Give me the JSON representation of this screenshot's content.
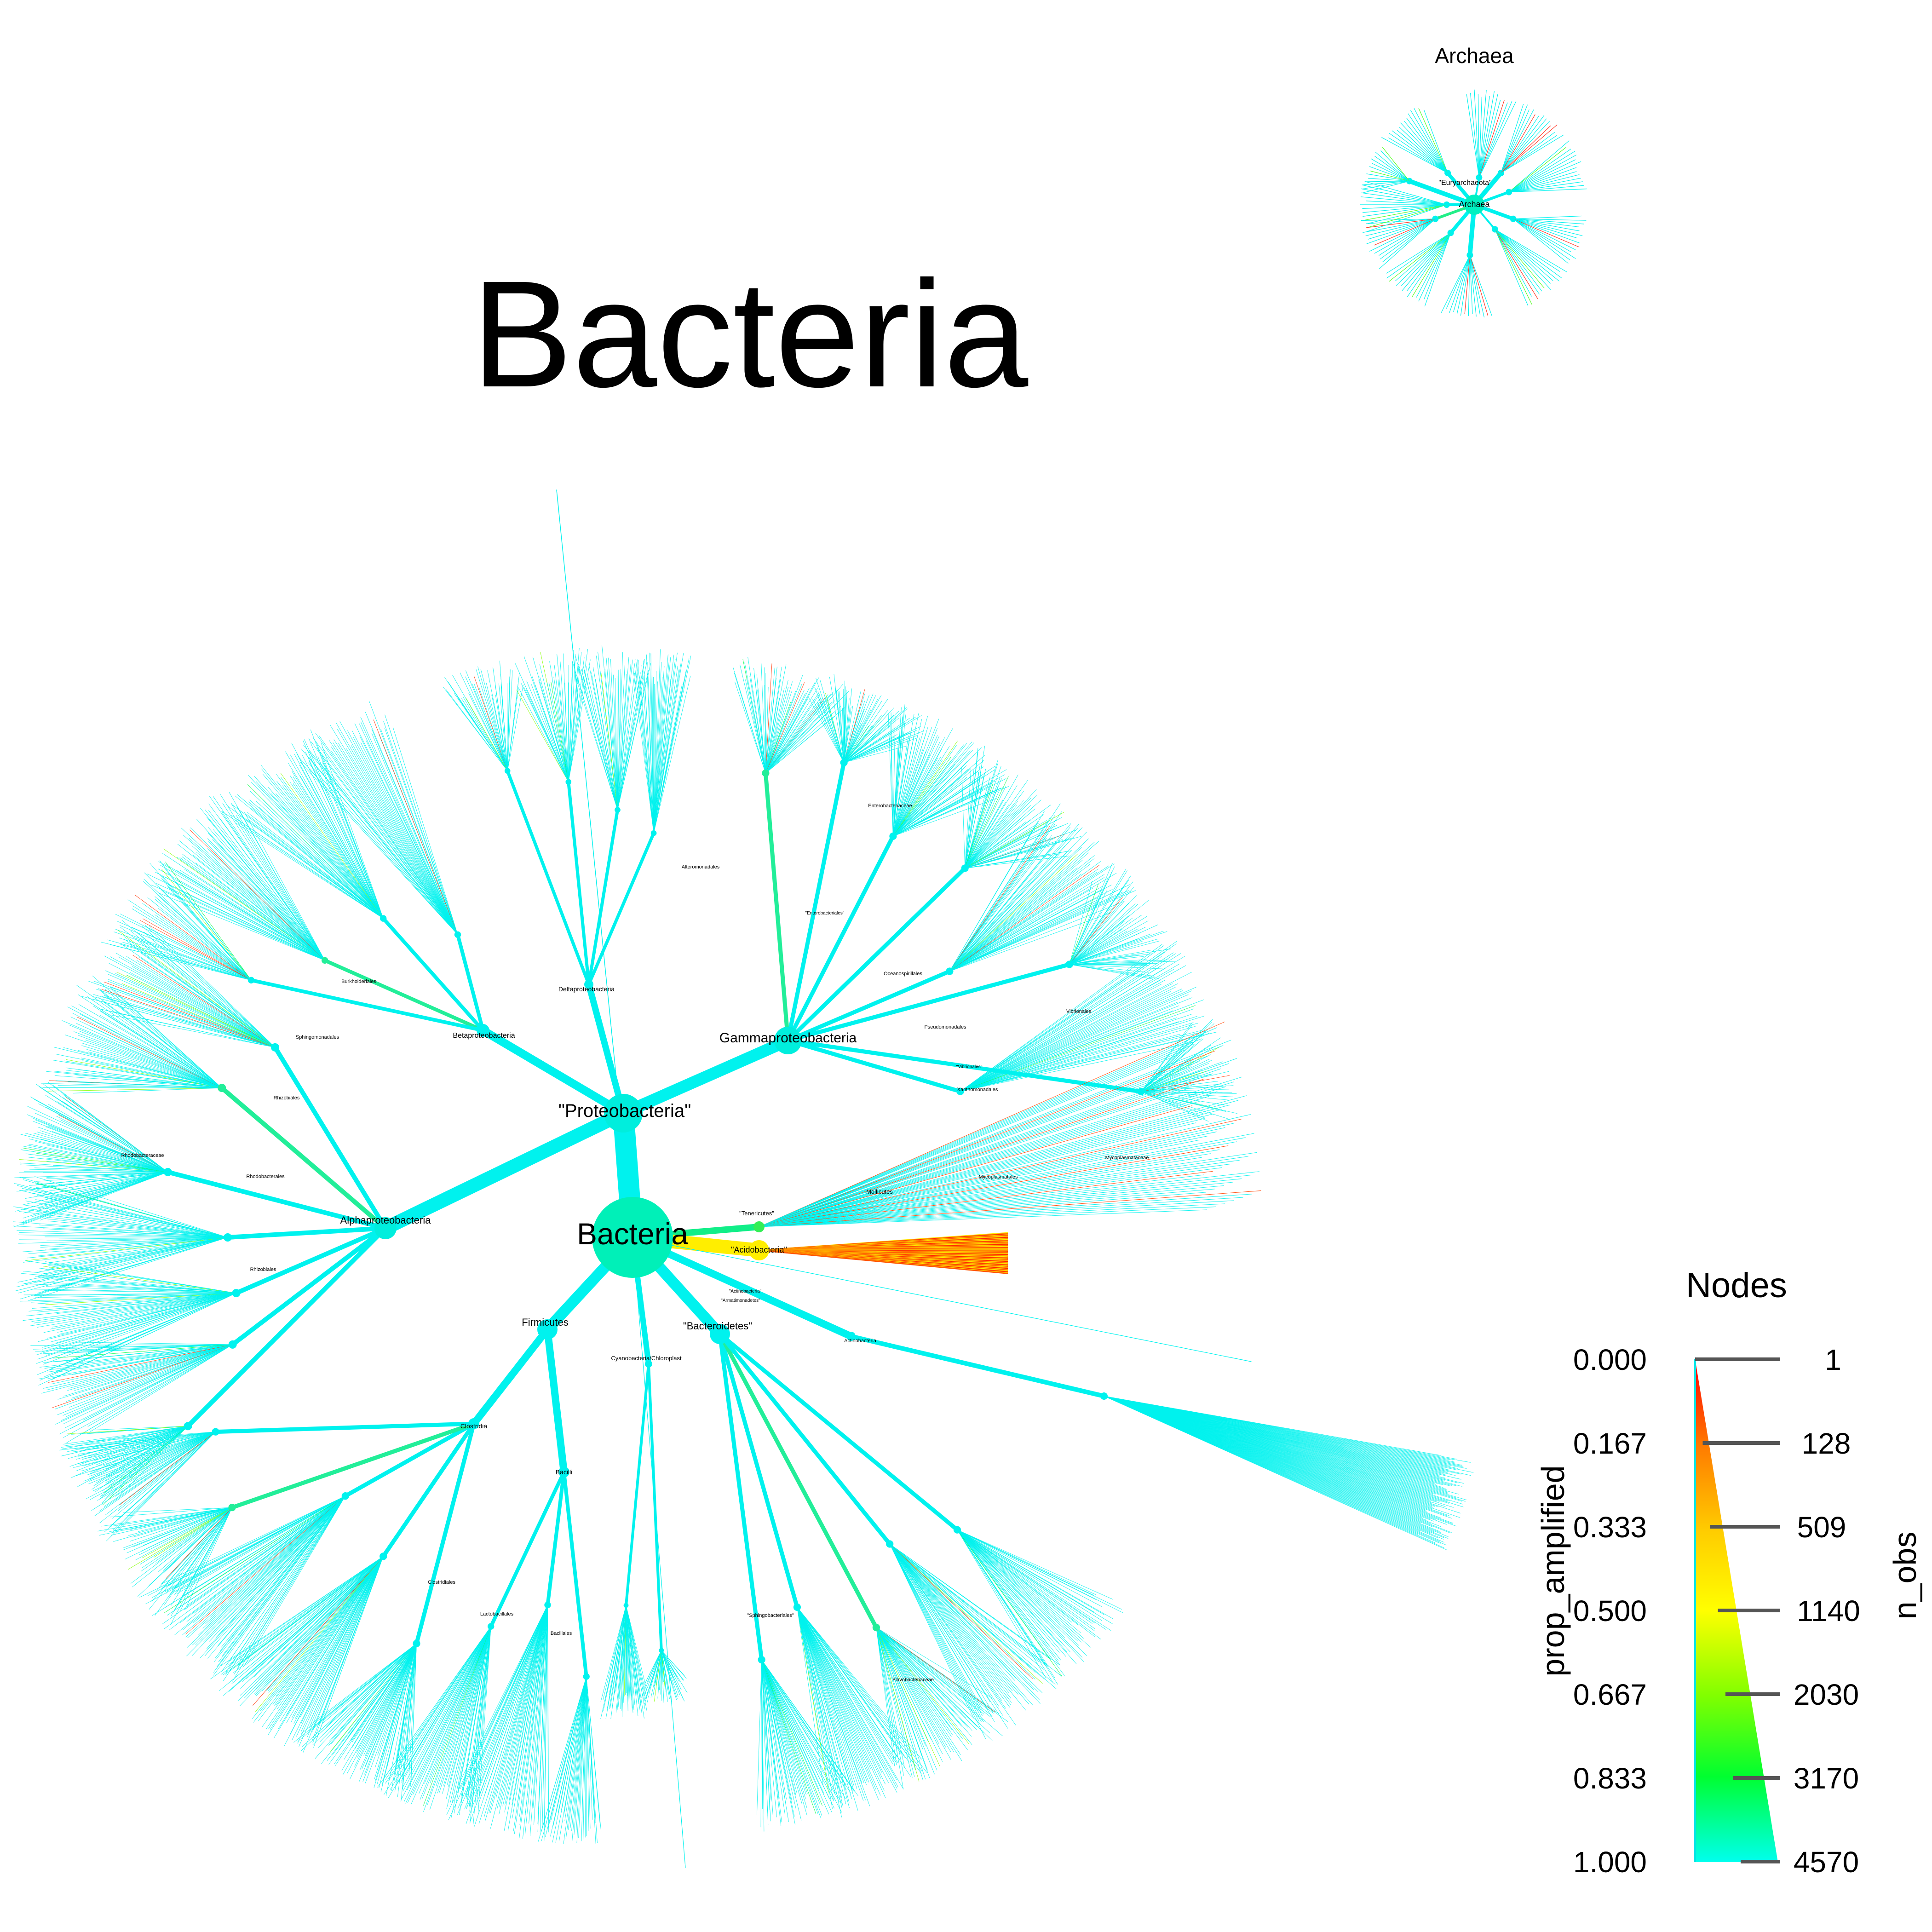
{
  "titles": {
    "main": "Bacteria",
    "inset": "Archaea"
  },
  "archaea_tree": {
    "root": "Archaea",
    "labels": [
      "\"Euryarchaeota\""
    ]
  },
  "bacteria_tree": {
    "root": "Bacteria",
    "clades": [
      {
        "name": "\"Proteobacteria\"",
        "size": "large"
      },
      {
        "name": "Alphaproteobacteria",
        "size": "medium"
      },
      {
        "name": "Betaproteobacteria",
        "size": "small"
      },
      {
        "name": "Gammaproteobacteria",
        "size": "medium"
      },
      {
        "name": "Deltaproteobacteria",
        "size": "small"
      },
      {
        "name": "Firmicutes",
        "size": "medium"
      },
      {
        "name": "\"Bacteroidetes\"",
        "size": "medium"
      },
      {
        "name": "Cyanobacteria/Chloroplast",
        "size": "small"
      },
      {
        "name": "\"Acidobacteria\"",
        "size": "small"
      },
      {
        "name": "\"Tenericutes\"",
        "size": "tiny"
      },
      {
        "name": "Mollicutes",
        "size": "tiny"
      },
      {
        "name": "Clostridia",
        "size": "small"
      },
      {
        "name": "Bacilli",
        "size": "small"
      },
      {
        "name": "Actinobacteria",
        "size": "tiny"
      },
      {
        "name": "\"Actinobacteria\"",
        "size": "tiny"
      },
      {
        "name": "\"Armatimonadetes\"",
        "size": "tiny"
      },
      {
        "name": "Enterobacteriaceae",
        "size": "tiny"
      },
      {
        "name": "\"Enterobacteriales\"",
        "size": "tiny"
      },
      {
        "name": "Alteromonadales",
        "size": "tiny"
      },
      {
        "name": "Oceanospirillales",
        "size": "tiny"
      },
      {
        "name": "Pseudomonadales",
        "size": "tiny"
      },
      {
        "name": "Vibrionales",
        "size": "tiny"
      },
      {
        "name": "\"Vibrionales\"",
        "size": "tiny"
      },
      {
        "name": "Xanthomonadales",
        "size": "tiny"
      },
      {
        "name": "Burkholderiales",
        "size": "tiny"
      },
      {
        "name": "Sphingomonadales",
        "size": "tiny"
      },
      {
        "name": "Rhizobiales",
        "size": "tiny"
      },
      {
        "name": "Rhodobacteraceae",
        "size": "tiny"
      },
      {
        "name": "Rhodobacterales",
        "size": "tiny"
      },
      {
        "name": "Rhizobiales",
        "size": "tiny"
      },
      {
        "name": "Clostridiales",
        "size": "tiny"
      },
      {
        "name": "Lactobacillales",
        "size": "tiny"
      },
      {
        "name": "Bacillales",
        "size": "tiny"
      },
      {
        "name": "\"Sphingobacteriales\"",
        "size": "tiny"
      },
      {
        "name": "Flavobacteriaceae",
        "size": "tiny"
      },
      {
        "name": "Mycoplasmataceae",
        "size": "tiny"
      },
      {
        "name": "Mycoplasmatales",
        "size": "tiny"
      }
    ]
  },
  "legend": {
    "title": "Nodes",
    "color_label": "prop_amplified",
    "size_label": "n_obs",
    "color_ticks": [
      "0.000",
      "0.167",
      "0.333",
      "0.500",
      "0.667",
      "0.833",
      "1.000"
    ],
    "size_ticks": [
      "1",
      "128",
      "509",
      "1140",
      "2030",
      "3170",
      "4570"
    ],
    "colors": {
      "low": "#ff0000",
      "orange": "#ff8c00",
      "mid": "#ffff00",
      "green": "#00ff00",
      "high": "#00ffee"
    }
  }
}
